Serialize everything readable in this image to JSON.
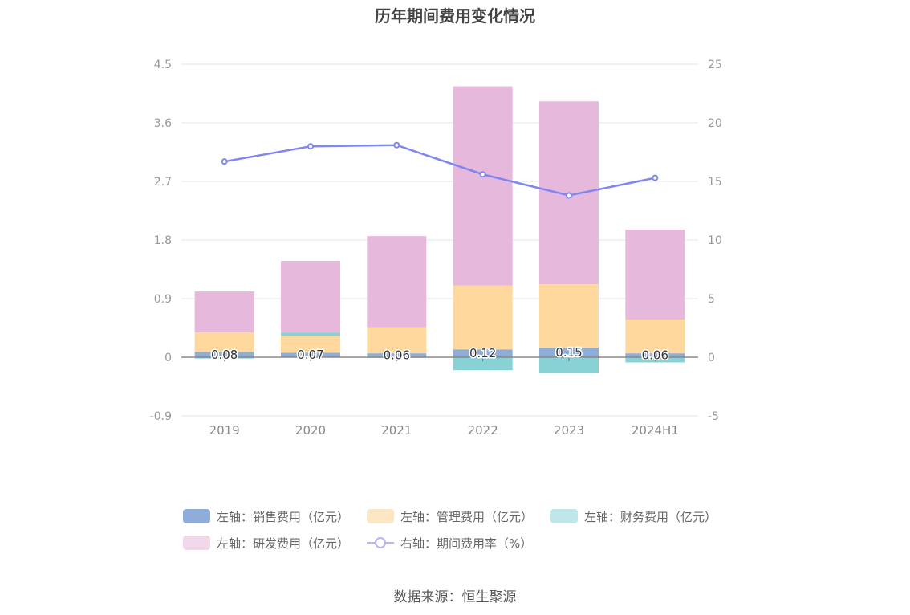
{
  "chart_data": {
    "type": "bar",
    "title": "历年期间费用变化情况",
    "categories": [
      "2019",
      "2020",
      "2021",
      "2022",
      "2023",
      "2024H1"
    ],
    "left_axis": {
      "ylim": [
        -0.9,
        4.5
      ],
      "ticks": [
        "4.5",
        "3.6",
        "2.7",
        "1.8",
        "0.9",
        "0",
        "-0.9"
      ],
      "tick_values": [
        4.5,
        3.6,
        2.7,
        1.8,
        0.9,
        0,
        -0.9
      ]
    },
    "right_axis": {
      "ylim": [
        -5,
        25
      ],
      "ticks": [
        "25",
        "20",
        "15",
        "10",
        "5",
        "0",
        "-5"
      ],
      "tick_values": [
        25,
        20,
        15,
        10,
        5,
        0,
        -5
      ]
    },
    "stacked": true,
    "series": [
      {
        "name": "左轴：销售费用（亿元）",
        "axis": "left",
        "type": "bar",
        "color": "#8eadd9",
        "values": [
          0.08,
          0.07,
          0.06,
          0.12,
          0.15,
          0.06
        ],
        "labels": [
          "0.08",
          "0.07",
          "0.06",
          "0.12",
          "0.15",
          "0.06"
        ]
      },
      {
        "name": "左轴：管理费用（亿元）",
        "axis": "left",
        "type": "bar",
        "color": "#fed89c",
        "legend_color": "#fde6c4",
        "values": [
          0.3,
          0.26,
          0.4,
          0.98,
          0.97,
          0.52
        ]
      },
      {
        "name": "左轴：财务费用（亿元）",
        "axis": "left",
        "type": "bar",
        "color": "#88d2d6",
        "legend_color": "#bfe6e8",
        "values": [
          -0.02,
          0.05,
          -0.01,
          -0.2,
          -0.24,
          -0.08
        ]
      },
      {
        "name": "左轴：研发费用（亿元）",
        "axis": "left",
        "type": "bar",
        "color": "#e6b9dc",
        "legend_color": "#f0d7ea",
        "values": [
          0.63,
          1.1,
          1.4,
          3.06,
          2.81,
          1.38
        ]
      },
      {
        "name": "右轴：期间费用率（%）",
        "axis": "right",
        "type": "line",
        "color": "#7f86ec",
        "values": [
          16.7,
          18.0,
          18.1,
          15.6,
          13.8,
          15.3
        ]
      }
    ],
    "legend_position": "bottom",
    "grid": true
  },
  "source_text": "数据来源：恒生聚源"
}
